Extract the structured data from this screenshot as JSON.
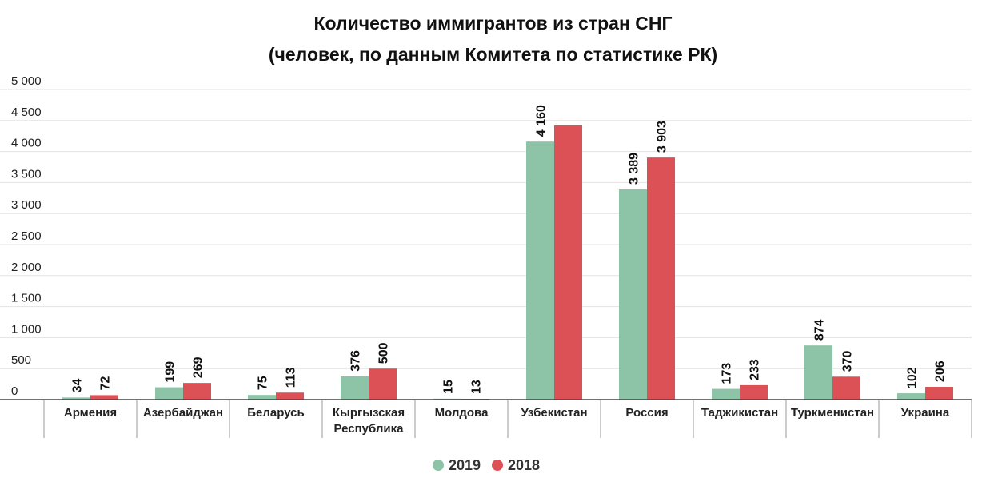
{
  "chart_data": {
    "type": "bar",
    "title": "Количество иммигрантов из стран СНГ",
    "subtitle": "(человек, по данным Комитета по статистике РК)",
    "categories": [
      [
        "Армения"
      ],
      [
        "Азербайджан"
      ],
      [
        "Беларусь"
      ],
      [
        "Кыргызская",
        "Республика"
      ],
      [
        "Молдова"
      ],
      [
        "Узбекистан"
      ],
      [
        "Россия"
      ],
      [
        "Таджикистан"
      ],
      [
        "Туркменистан"
      ],
      [
        "Украина"
      ]
    ],
    "series": [
      {
        "name": "2019",
        "color": "#8dc3a7",
        "values": [
          34,
          199,
          75,
          376,
          15,
          4160,
          3389,
          173,
          874,
          102
        ],
        "labels": [
          "34",
          "199",
          "75",
          "376",
          "15",
          "4 160",
          "3 389",
          "173",
          "874",
          "102"
        ]
      },
      {
        "name": "2018",
        "color": "#dc5156",
        "values": [
          72,
          269,
          113,
          500,
          13,
          4420,
          3903,
          233,
          370,
          206
        ],
        "labels": [
          "72",
          "269",
          "113",
          "500",
          "13",
          "",
          "3 903",
          "233",
          "370",
          "206"
        ]
      }
    ],
    "yticks": [
      {
        "value": 0,
        "label": "0"
      },
      {
        "value": 500,
        "label": "500"
      },
      {
        "value": 1000,
        "label": "1 000"
      },
      {
        "value": 1500,
        "label": "1 500"
      },
      {
        "value": 2000,
        "label": "2 000"
      },
      {
        "value": 2500,
        "label": "2 500"
      },
      {
        "value": 3000,
        "label": "3 000"
      },
      {
        "value": 3500,
        "label": "3 500"
      },
      {
        "value": 4000,
        "label": "4 000"
      },
      {
        "value": 4500,
        "label": "4 500"
      },
      {
        "value": 5000,
        "label": "5 000"
      }
    ],
    "ylim": [
      0,
      5000
    ],
    "grid": true,
    "legend_position": "bottom-center"
  }
}
